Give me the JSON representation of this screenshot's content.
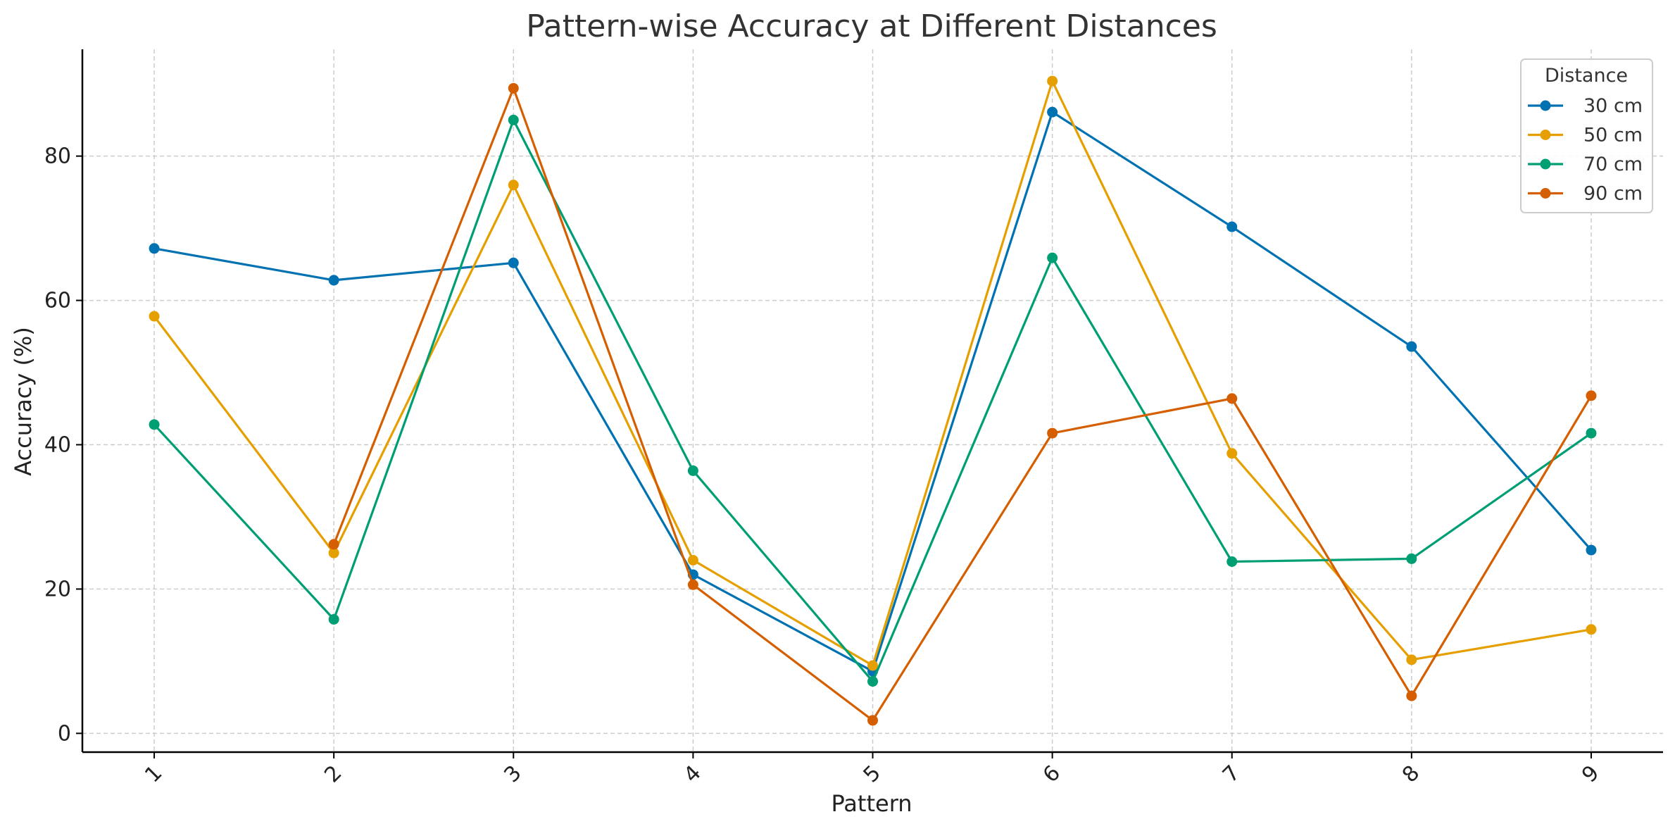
{
  "chart_data": {
    "type": "line",
    "title": "Pattern-wise Accuracy at Different Distances",
    "xlabel": "Pattern",
    "ylabel": "Accuracy (%)",
    "x": [
      1,
      2,
      3,
      4,
      5,
      6,
      7,
      8,
      9
    ],
    "x_tick_labels": [
      "1",
      "2",
      "3",
      "4",
      "5",
      "6",
      "7",
      "8",
      "9"
    ],
    "y_ticks": [
      0,
      20,
      40,
      60,
      80
    ],
    "y_tick_labels": [
      "0",
      "20",
      "40",
      "60",
      "80"
    ],
    "xlim": [
      0.6,
      9.4
    ],
    "ylim": [
      -2.6,
      94.8
    ],
    "grid": true,
    "markers": "circle",
    "legend": {
      "title": "Distance",
      "position": "top-right"
    },
    "series": [
      {
        "name": "30 cm",
        "color": "#0072B2",
        "values": [
          67.2,
          62.8,
          65.2,
          22.0,
          8.6,
          86.1,
          70.2,
          53.6,
          25.4
        ]
      },
      {
        "name": "50 cm",
        "color": "#E69F00",
        "values": [
          57.8,
          25.0,
          76.0,
          24.0,
          9.4,
          90.4,
          38.8,
          10.2,
          14.4
        ]
      },
      {
        "name": "70 cm",
        "color": "#009E73",
        "values": [
          42.8,
          15.8,
          85.0,
          36.4,
          7.2,
          65.9,
          23.8,
          24.2,
          41.6
        ]
      },
      {
        "name": "90 cm",
        "color": "#D55E00",
        "values": [
          null,
          26.2,
          89.4,
          20.6,
          1.8,
          41.6,
          46.4,
          5.2,
          46.8
        ]
      }
    ]
  }
}
